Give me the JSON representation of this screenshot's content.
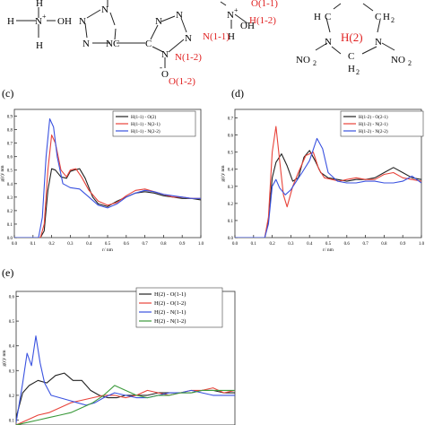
{
  "colors": {
    "black": "#222222",
    "red": "#e8433a",
    "blue": "#3a52e0",
    "green": "#3b9a3b",
    "annotation_red": "#e02020"
  },
  "structures": {
    "ammonium_left": {
      "H_top": "H",
      "H_left": "H",
      "H_bottom": "H",
      "N": "N",
      "charge": "+",
      "OH": "OH"
    },
    "tetrazole": {
      "N": "N",
      "C": "C",
      "charge": "-",
      "O_minus": "O",
      "charge_o": "-"
    },
    "ammonium_right": {
      "N": "N",
      "charge": "+",
      "OH": "OH",
      "H": "H"
    },
    "annotations_mid": [
      "O(1-1)",
      "H(1-2)",
      "N(1-1)",
      "N(1-2)",
      "O(1-2)"
    ],
    "ring": {
      "H2a": "H",
      "H2b": "H",
      "H2c": "H",
      "sub2": "2",
      "N": "N",
      "C": "C",
      "NO2_left": "NO",
      "NO2_right": "NO",
      "sub_no2": "2",
      "annotation": "H(2)"
    }
  },
  "panels": [
    {
      "label": "(c)",
      "ylabel": "g(r)/ nm",
      "xlabel": "r/ nm",
      "xticks": [
        "0.0",
        "0.1",
        "0.2",
        "0.3",
        "0.4",
        "0.5",
        "0.6",
        "0.7",
        "0.8",
        "0.9",
        "1.0"
      ],
      "yticks": [
        "0.0",
        "0.1",
        "0.2",
        "0.3",
        "0.4",
        "0.5",
        "0.6",
        "0.7",
        "0.8",
        "0.9"
      ],
      "xlim": [
        0,
        1.0
      ],
      "ylim": [
        0,
        0.95
      ]
    },
    {
      "label": "(d)",
      "ylabel": "g(r)/ nm",
      "xlabel": "r/ nm",
      "xticks": [
        "0.0",
        "0.1",
        "0.2",
        "0.3",
        "0.4",
        "0.5",
        "0.6",
        "0.7",
        "0.8",
        "0.9",
        "1.0"
      ],
      "yticks": [
        "0.0",
        "0.1",
        "0.2",
        "0.3",
        "0.4",
        "0.5",
        "0.6",
        "0.7"
      ],
      "xlim": [
        0,
        1.0
      ],
      "ylim": [
        0,
        0.75
      ]
    },
    {
      "label": "(e)",
      "ylabel": "g(r)/ nm",
      "xlabel": "",
      "xticks": [],
      "yticks": [
        "0.1",
        "0.2",
        "0.3",
        "0.4",
        "0.5",
        "0.6"
      ],
      "xlim": [
        0,
        1.0
      ],
      "ylim": [
        0.08,
        0.62
      ]
    }
  ],
  "chart_data": [
    {
      "type": "line",
      "xlabel": "r/ nm",
      "ylabel": "g(r)/ nm",
      "xlim": [
        0,
        1.0
      ],
      "ylim": [
        0,
        0.95
      ],
      "legend": "top-right",
      "series": [
        {
          "name": "H(1-1) - O(2)",
          "color": "#222222",
          "x": [
            0.0,
            0.14,
            0.16,
            0.18,
            0.2,
            0.22,
            0.25,
            0.28,
            0.3,
            0.32,
            0.35,
            0.38,
            0.42,
            0.45,
            0.5,
            0.55,
            0.6,
            0.65,
            0.7,
            0.75,
            0.8,
            0.85,
            0.9,
            0.95,
            1.0
          ],
          "y": [
            0.0,
            0.0,
            0.05,
            0.35,
            0.51,
            0.5,
            0.45,
            0.44,
            0.49,
            0.5,
            0.51,
            0.44,
            0.3,
            0.25,
            0.23,
            0.27,
            0.3,
            0.33,
            0.34,
            0.33,
            0.31,
            0.3,
            0.29,
            0.29,
            0.28
          ]
        },
        {
          "name": "H(1-1) - N(2-1)",
          "color": "#e8433a",
          "x": [
            0.0,
            0.14,
            0.16,
            0.18,
            0.2,
            0.22,
            0.25,
            0.28,
            0.3,
            0.33,
            0.36,
            0.4,
            0.45,
            0.5,
            0.55,
            0.6,
            0.65,
            0.7,
            0.75,
            0.8,
            0.85,
            0.9,
            0.95,
            1.0
          ],
          "y": [
            0.0,
            0.0,
            0.1,
            0.5,
            0.76,
            0.7,
            0.5,
            0.45,
            0.5,
            0.51,
            0.45,
            0.35,
            0.27,
            0.24,
            0.26,
            0.31,
            0.35,
            0.36,
            0.34,
            0.32,
            0.3,
            0.3,
            0.29,
            0.29
          ]
        },
        {
          "name": "H(1-1) - N(2-2)",
          "color": "#3a52e0",
          "x": [
            0.0,
            0.13,
            0.15,
            0.17,
            0.19,
            0.21,
            0.23,
            0.26,
            0.3,
            0.35,
            0.4,
            0.45,
            0.5,
            0.55,
            0.6,
            0.65,
            0.7,
            0.75,
            0.8,
            0.85,
            0.9,
            0.95,
            1.0
          ],
          "y": [
            0.0,
            0.0,
            0.15,
            0.6,
            0.88,
            0.82,
            0.6,
            0.4,
            0.37,
            0.36,
            0.3,
            0.24,
            0.22,
            0.25,
            0.3,
            0.33,
            0.35,
            0.34,
            0.32,
            0.31,
            0.3,
            0.29,
            0.29
          ]
        }
      ]
    },
    {
      "type": "line",
      "xlabel": "r/ nm",
      "ylabel": "g(r)/ nm",
      "xlim": [
        0,
        1.0
      ],
      "ylim": [
        0,
        0.75
      ],
      "legend": "top-right",
      "series": [
        {
          "name": "H(1-2) - O(2-1)",
          "color": "#222222",
          "x": [
            0.0,
            0.16,
            0.18,
            0.2,
            0.22,
            0.25,
            0.28,
            0.31,
            0.34,
            0.37,
            0.4,
            0.43,
            0.46,
            0.5,
            0.55,
            0.6,
            0.65,
            0.7,
            0.75,
            0.8,
            0.85,
            0.9,
            0.95,
            1.0
          ],
          "y": [
            0.0,
            0.0,
            0.1,
            0.35,
            0.44,
            0.49,
            0.42,
            0.33,
            0.35,
            0.47,
            0.51,
            0.45,
            0.38,
            0.35,
            0.34,
            0.33,
            0.34,
            0.34,
            0.35,
            0.38,
            0.41,
            0.38,
            0.35,
            0.34
          ]
        },
        {
          "name": "H(1-2) - N(2-1)",
          "color": "#e8433a",
          "x": [
            0.0,
            0.16,
            0.18,
            0.2,
            0.22,
            0.24,
            0.26,
            0.28,
            0.31,
            0.34,
            0.38,
            0.42,
            0.45,
            0.48,
            0.52,
            0.56,
            0.6,
            0.65,
            0.7,
            0.75,
            0.8,
            0.85,
            0.9,
            0.95,
            1.0
          ],
          "y": [
            0.0,
            0.0,
            0.12,
            0.5,
            0.65,
            0.45,
            0.25,
            0.18,
            0.3,
            0.38,
            0.48,
            0.5,
            0.4,
            0.35,
            0.34,
            0.33,
            0.34,
            0.35,
            0.34,
            0.34,
            0.37,
            0.38,
            0.35,
            0.34,
            0.33
          ]
        },
        {
          "name": "H(1-2) - N(2-2)",
          "color": "#3a52e0",
          "x": [
            0.0,
            0.16,
            0.18,
            0.2,
            0.22,
            0.24,
            0.27,
            0.3,
            0.33,
            0.36,
            0.4,
            0.44,
            0.47,
            0.5,
            0.55,
            0.6,
            0.65,
            0.7,
            0.75,
            0.8,
            0.85,
            0.9,
            0.95,
            1.0
          ],
          "y": [
            0.0,
            0.0,
            0.08,
            0.3,
            0.34,
            0.29,
            0.25,
            0.28,
            0.33,
            0.38,
            0.45,
            0.58,
            0.52,
            0.38,
            0.33,
            0.32,
            0.32,
            0.33,
            0.33,
            0.32,
            0.32,
            0.33,
            0.36,
            0.32
          ]
        }
      ]
    },
    {
      "type": "line",
      "xlabel": "",
      "ylabel": "g(r)/ nm",
      "xlim": [
        0,
        1.0
      ],
      "ylim": [
        0.08,
        0.62
      ],
      "legend": "top-right",
      "series": [
        {
          "name": "H(2) - O(1-1)",
          "color": "#222222",
          "x": [
            0.0,
            0.03,
            0.06,
            0.1,
            0.14,
            0.18,
            0.22,
            0.26,
            0.3,
            0.34,
            0.38,
            0.42,
            0.46,
            0.5,
            0.55,
            0.6,
            0.65,
            0.7,
            0.75,
            0.8,
            0.85,
            0.9,
            0.95,
            1.0
          ],
          "y": [
            0.11,
            0.21,
            0.24,
            0.26,
            0.25,
            0.28,
            0.29,
            0.26,
            0.26,
            0.22,
            0.2,
            0.19,
            0.19,
            0.2,
            0.2,
            0.2,
            0.21,
            0.21,
            0.21,
            0.21,
            0.22,
            0.22,
            0.21,
            0.21
          ]
        },
        {
          "name": "H(2) - O(1-2)",
          "color": "#e8433a",
          "x": [
            0.0,
            0.05,
            0.1,
            0.15,
            0.2,
            0.25,
            0.3,
            0.35,
            0.4,
            0.45,
            0.5,
            0.55,
            0.6,
            0.65,
            0.7,
            0.75,
            0.8,
            0.85,
            0.9,
            0.95,
            1.0
          ],
          "y": [
            0.08,
            0.1,
            0.12,
            0.13,
            0.15,
            0.17,
            0.18,
            0.19,
            0.2,
            0.2,
            0.19,
            0.2,
            0.22,
            0.21,
            0.2,
            0.21,
            0.22,
            0.22,
            0.23,
            0.21,
            0.22
          ]
        },
        {
          "name": "H(2) - N(1-1)",
          "color": "#3a52e0",
          "x": [
            0.0,
            0.03,
            0.05,
            0.07,
            0.09,
            0.11,
            0.13,
            0.16,
            0.2,
            0.24,
            0.28,
            0.32,
            0.36,
            0.4,
            0.45,
            0.5,
            0.55,
            0.6,
            0.65,
            0.7,
            0.75,
            0.8,
            0.85,
            0.9,
            0.95,
            1.0
          ],
          "y": [
            0.09,
            0.25,
            0.37,
            0.32,
            0.44,
            0.33,
            0.25,
            0.2,
            0.19,
            0.18,
            0.17,
            0.16,
            0.17,
            0.19,
            0.21,
            0.2,
            0.19,
            0.19,
            0.2,
            0.21,
            0.21,
            0.22,
            0.21,
            0.2,
            0.2,
            0.2
          ]
        },
        {
          "name": "H(2) - N(1-2)",
          "color": "#3b9a3b",
          "x": [
            0.0,
            0.05,
            0.1,
            0.15,
            0.2,
            0.25,
            0.3,
            0.35,
            0.4,
            0.45,
            0.5,
            0.55,
            0.6,
            0.65,
            0.7,
            0.75,
            0.8,
            0.85,
            0.9,
            0.95,
            1.0
          ],
          "y": [
            0.08,
            0.09,
            0.1,
            0.11,
            0.12,
            0.13,
            0.15,
            0.17,
            0.2,
            0.24,
            0.22,
            0.2,
            0.19,
            0.2,
            0.2,
            0.21,
            0.21,
            0.22,
            0.22,
            0.22,
            0.22
          ]
        }
      ]
    }
  ]
}
